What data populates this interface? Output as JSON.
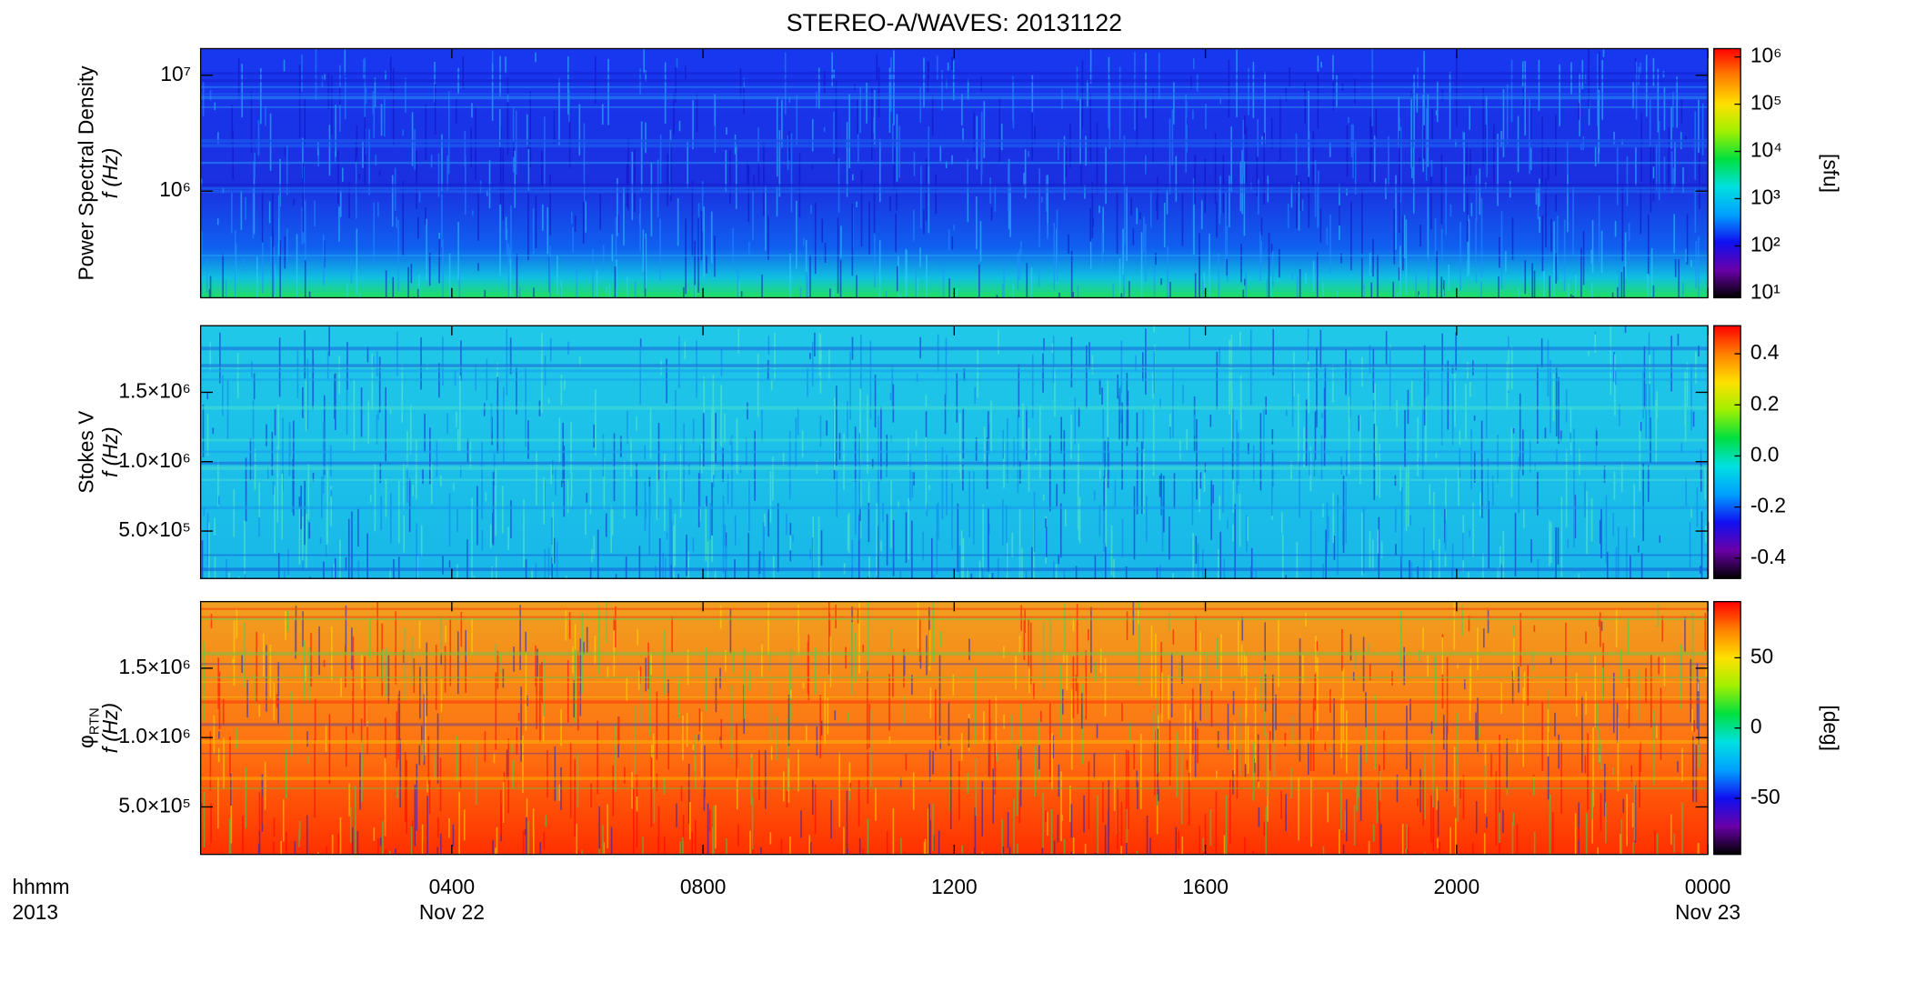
{
  "title": "STEREO-A/WAVES: 20131122",
  "x_axis": {
    "xlim": [
      0,
      24
    ],
    "xticks": [
      {
        "value": 4,
        "label": "0400"
      },
      {
        "value": 8,
        "label": "0800"
      },
      {
        "value": 12,
        "label": "1200"
      },
      {
        "value": 16,
        "label": "1600"
      },
      {
        "value": 20,
        "label": "2000"
      },
      {
        "value": 24,
        "label": "0000"
      }
    ],
    "date_labels": [
      {
        "value": 4,
        "label": "Nov 22"
      },
      {
        "value": 24,
        "label": "Nov 23"
      }
    ],
    "label": "hhmm",
    "year": "2013"
  },
  "chart_data": [
    {
      "type": "heatmap",
      "ylabel": "Power Spectral Density",
      "ylabel2": "f (Hz)",
      "yscale": "log",
      "ylim": [
        120000,
        17000000
      ],
      "yticks": [
        {
          "value": 1000000,
          "label": "10⁶"
        },
        {
          "value": 10000000,
          "label": "10⁷"
        }
      ],
      "zscale": "log",
      "zlim": [
        8,
        1500000
      ],
      "zlabel": "[sfu]",
      "zticks": [
        {
          "value": 10,
          "label": "10¹"
        },
        {
          "value": 100,
          "label": "10²"
        },
        {
          "value": 1000,
          "label": "10³"
        },
        {
          "value": 10000,
          "label": "10⁴"
        },
        {
          "value": 100000,
          "label": "10⁵"
        },
        {
          "value": 1000000,
          "label": "10⁶"
        }
      ]
    },
    {
      "type": "heatmap",
      "ylabel": "Stokes V",
      "ylabel2": "f (Hz)",
      "yscale": "linear",
      "ylim": [
        158000,
        1980000
      ],
      "yticks": [
        {
          "value": 500000,
          "label": "5.0×10⁵"
        },
        {
          "value": 1000000,
          "label": "1.0×10⁶"
        },
        {
          "value": 1500000,
          "label": "1.5×10⁶"
        }
      ],
      "zscale": "linear",
      "zlim": [
        -0.48,
        0.51
      ],
      "zticks": [
        -0.4,
        -0.2,
        {
          "value": 0,
          "label": "0.0"
        },
        0.2,
        0.4
      ]
    },
    {
      "type": "heatmap",
      "ylabel": "φ",
      "ylabel_sub": "RTN",
      "ylabel2": "f (Hz)",
      "yscale": "linear",
      "ylim": [
        158000,
        1980000
      ],
      "yticks": [
        {
          "value": 500000,
          "label": "5.0×10⁵"
        },
        {
          "value": 1000000,
          "label": "1.0×10⁶"
        },
        {
          "value": 1500000,
          "label": "1.5×10⁶"
        }
      ],
      "zscale": "linear",
      "zlim": [
        -90,
        90
      ],
      "zlabel": "[deg]",
      "zticks": [
        -50,
        0,
        50
      ]
    }
  ],
  "colormap": [
    "#000000",
    "#6a00a8",
    "#1010f0",
    "#00a0ff",
    "#00e0e0",
    "#00e040",
    "#a0f000",
    "#ffe000",
    "#ff8000",
    "#ff0000"
  ]
}
